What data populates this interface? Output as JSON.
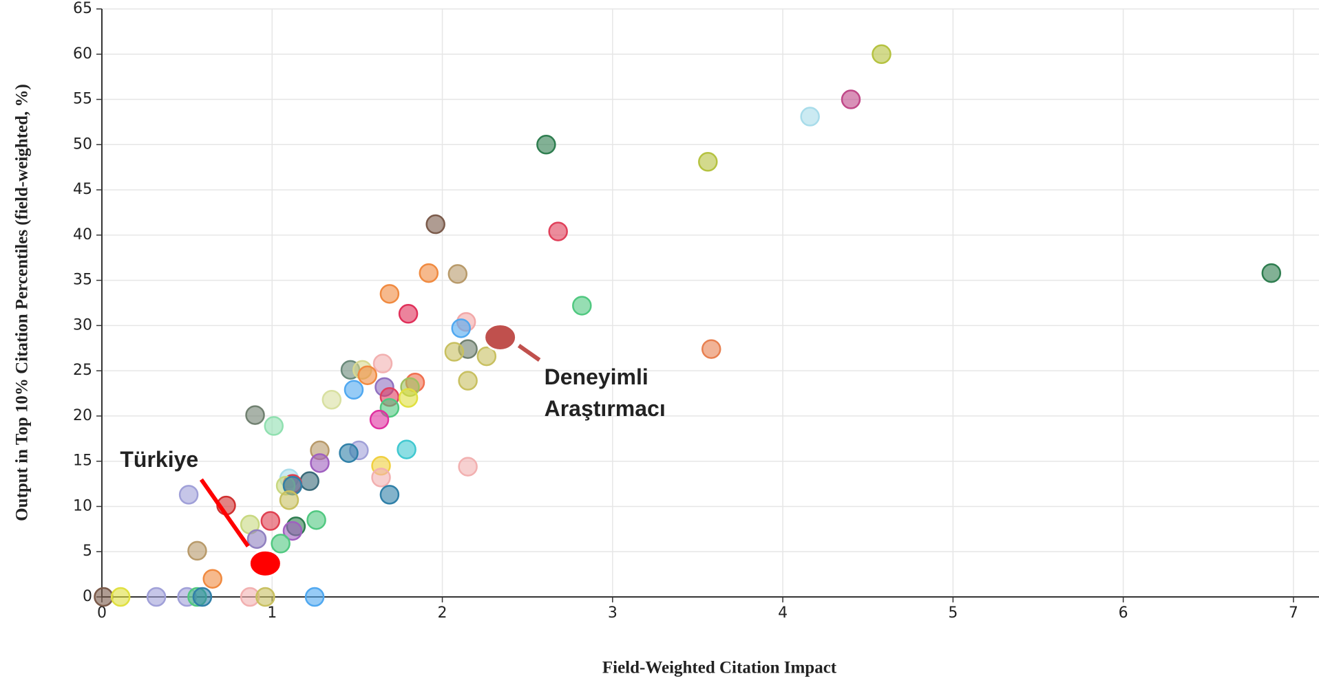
{
  "chart_data": {
    "type": "scatter",
    "x_label": "Field-Weighted Citation Impact",
    "y_label": "Output in Top 10% Citation Percentiles (field-weighted, %)",
    "xlim": [
      0,
      7.15
    ],
    "ylim": [
      0,
      65
    ],
    "xticks": [
      0,
      1,
      2,
      3,
      4,
      5,
      6,
      7
    ],
    "yticks": [
      0,
      5,
      10,
      15,
      20,
      25,
      30,
      35,
      40,
      45,
      50,
      55,
      60,
      65
    ],
    "grid": true,
    "x": [
      4.58,
      4.4,
      4.16,
      2.61,
      3.56,
      1.96,
      2.68,
      6.87,
      1.92,
      2.09,
      1.69,
      2.82,
      1.8,
      2.14,
      2.11,
      3.58,
      2.15,
      2.07,
      2.26,
      1.65,
      1.46,
      1.53,
      1.56,
      2.15,
      1.84,
      1.81,
      1.66,
      1.48,
      1.69,
      1.8,
      1.35,
      1.69,
      0.9,
      1.01,
      1.63,
      1.79,
      1.28,
      1.51,
      1.45,
      1.28,
      1.64,
      2.15,
      1.64,
      1.1,
      1.22,
      1.12,
      1.08,
      1.12,
      0.51,
      1.69,
      1.1,
      0.73,
      0.87,
      0.99,
      1.26,
      1.14,
      1.12,
      0.91,
      1.05,
      0.56,
      0.65,
      0.01,
      0.11,
      0.32,
      0.5,
      0.56,
      0.59,
      0.87,
      0.96,
      1.25
    ],
    "values": [
      60.0,
      55.0,
      53.1,
      50.0,
      48.1,
      41.2,
      40.4,
      35.8,
      35.8,
      35.7,
      33.5,
      32.2,
      31.3,
      30.4,
      29.7,
      27.4,
      27.4,
      27.1,
      26.6,
      25.8,
      25.1,
      25.1,
      24.5,
      23.9,
      23.7,
      23.2,
      23.2,
      22.9,
      22.1,
      22.0,
      21.8,
      20.9,
      20.1,
      18.9,
      19.6,
      16.3,
      16.2,
      16.2,
      15.9,
      14.8,
      14.5,
      14.4,
      13.2,
      13.1,
      12.8,
      12.5,
      12.3,
      12.3,
      11.3,
      11.3,
      10.7,
      10.1,
      8.0,
      8.4,
      8.5,
      7.8,
      7.3,
      6.4,
      5.9,
      5.1,
      2.0,
      0,
      0,
      0,
      0,
      0,
      0,
      0,
      0,
      0
    ],
    "colors": [
      "#b5c240",
      "#c04888",
      "#a8dcea",
      "#2e7d4f",
      "#b5c240",
      "#7a5a4a",
      "#e0405a",
      "#2e7d4f",
      "#f08a40",
      "#b89a6a",
      "#f08a40",
      "#50c880",
      "#e0305a",
      "#f2a8a8",
      "#50a8f0",
      "#e88050",
      "#708070",
      "#c8c060",
      "#c8c060",
      "#f2b0b0",
      "#6a8a7a",
      "#d8d890",
      "#f08a40",
      "#c8c060",
      "#f07050",
      "#a0c060",
      "#9070c0",
      "#50a8f0",
      "#e04060",
      "#e0e040",
      "#d8e0a0",
      "#50c880",
      "#708070",
      "#90e0b0",
      "#e030a0",
      "#40c8d0",
      "#b89a6a",
      "#a0a0d8",
      "#3080a8",
      "#a060c0",
      "#f0d040",
      "#f2b0b0",
      "#f2b0b0",
      "#a8dcea",
      "#3a6a7a",
      "#e04050",
      "#c8d880",
      "#3080a8",
      "#a0a0d8",
      "#3080a8",
      "#c8c060",
      "#d03030",
      "#c8d880",
      "#e04050",
      "#50c880",
      "#2e7d4f",
      "#a060c0",
      "#9080c0",
      "#50c880",
      "#b89a6a",
      "#f08a40",
      "#7a5a4a",
      "#e0e040",
      "#a0a0d8",
      "#a0a0d8",
      "#50c880",
      "#3080a8",
      "#f2b0b0",
      "#c8c060",
      "#50a8f0"
    ],
    "annotations": [
      {
        "text": [
          "Türkiye"
        ],
        "x": 0.96,
        "y": 3.7,
        "color": "#ff0000"
      },
      {
        "text": [
          "Deneyimli",
          "Araştırmacı"
        ],
        "x": 2.34,
        "y": 28.7,
        "color": "#c0504d"
      }
    ]
  }
}
